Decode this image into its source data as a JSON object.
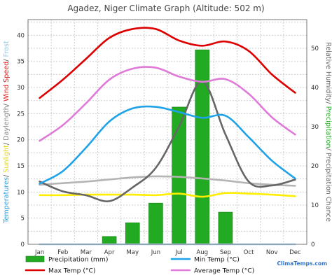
{
  "chart_data": {
    "type": "line",
    "title": "Agadez, Niger Climate Graph (Altitude: 502 m)",
    "categories": [
      "Jan",
      "Feb",
      "Mar",
      "Apr",
      "May",
      "Jun",
      "Jul",
      "Aug",
      "Sep",
      "Oct",
      "Nov",
      "Dec"
    ],
    "left_axis": {
      "ylim": [
        0,
        43
      ],
      "ticks": [
        0,
        5,
        10,
        15,
        20,
        25,
        30,
        35,
        40
      ],
      "title_parts": [
        {
          "text": "Temperatures",
          "color": "#1f9ee6"
        },
        {
          "text": "/ ",
          "color": "#555555"
        },
        {
          "text": "Sunlight",
          "color": "#e6d500"
        },
        {
          "text": "/ ",
          "color": "#555555"
        },
        {
          "text": "Daylength",
          "color": "#888888"
        },
        {
          "text": "/ ",
          "color": "#555555"
        },
        {
          "text": "Wind Speed",
          "color": "#e01010"
        },
        {
          "text": "/ ",
          "color": "#555555"
        },
        {
          "text": "Frost",
          "color": "#8ec8e8"
        }
      ]
    },
    "right_axis": {
      "ylim": [
        0,
        57.3
      ],
      "ticks": [
        0,
        10,
        20,
        30,
        40,
        50
      ],
      "title_parts": [
        {
          "text": "Relative Humidity",
          "color": "#666666"
        },
        {
          "text": "/ ",
          "color": "#555555"
        },
        {
          "text": "Precipitation",
          "color": "#22aa22"
        },
        {
          "text": "/ Precipitation Chance",
          "color": "#666666"
        }
      ]
    },
    "grid": true,
    "series": [
      {
        "name": "Precipitation (mm)",
        "kind": "bar",
        "axis": "right",
        "color": "#22aa22",
        "values": [
          0,
          0,
          0,
          2,
          5.5,
          10.5,
          35,
          49.6,
          8.2,
          0,
          0,
          0
        ]
      },
      {
        "name": "Min Temp (°C)",
        "kind": "line",
        "axis": "left",
        "color": "#1ea2e8",
        "values": [
          11.6,
          14,
          18.5,
          23.5,
          26,
          26.3,
          25.3,
          24.2,
          24.6,
          20.5,
          16,
          12.6
        ]
      },
      {
        "name": "Max Temp (°C)",
        "kind": "line",
        "axis": "left",
        "color": "#dd0000",
        "values": [
          28,
          31.5,
          35.5,
          39.5,
          41.2,
          41.2,
          39,
          38,
          38.8,
          37,
          32.5,
          29
        ]
      },
      {
        "name": "Average Temp (°C)",
        "kind": "line",
        "axis": "left",
        "color": "#e07ad8",
        "values": [
          19.8,
          22.8,
          27,
          31.5,
          33.6,
          33.8,
          32.1,
          31.1,
          31.6,
          28.8,
          24.3,
          21
        ]
      },
      {
        "name": "Average Sunlight Hours/ Day",
        "kind": "line",
        "axis": "left",
        "color": "#ffee00",
        "values": [
          9.4,
          9.4,
          9.5,
          9.5,
          9.5,
          9.4,
          9.7,
          9.1,
          9.8,
          9.7,
          9.5,
          9.2
        ]
      },
      {
        "name": "Days with Frost",
        "kind": "line",
        "axis": "left",
        "color": "#a8d4ee",
        "values": [
          0,
          0,
          0,
          0,
          0,
          0,
          0,
          0,
          0,
          0,
          0,
          0
        ]
      },
      {
        "name": "Daylength (Hours)",
        "kind": "line",
        "axis": "left",
        "color": "#b4b4b4",
        "values": [
          11.4,
          11.7,
          12,
          12.4,
          12.8,
          13,
          12.9,
          12.6,
          12.2,
          11.7,
          11.4,
          11.2
        ]
      },
      {
        "name": "Relative Humidity (%)",
        "kind": "line",
        "axis": "right",
        "color": "#666666",
        "values": [
          16,
          13.5,
          12.5,
          11,
          14.5,
          19.5,
          30,
          41.5,
          28,
          16,
          15,
          16.5
        ]
      }
    ],
    "credit": "ClimaTemps.com"
  }
}
